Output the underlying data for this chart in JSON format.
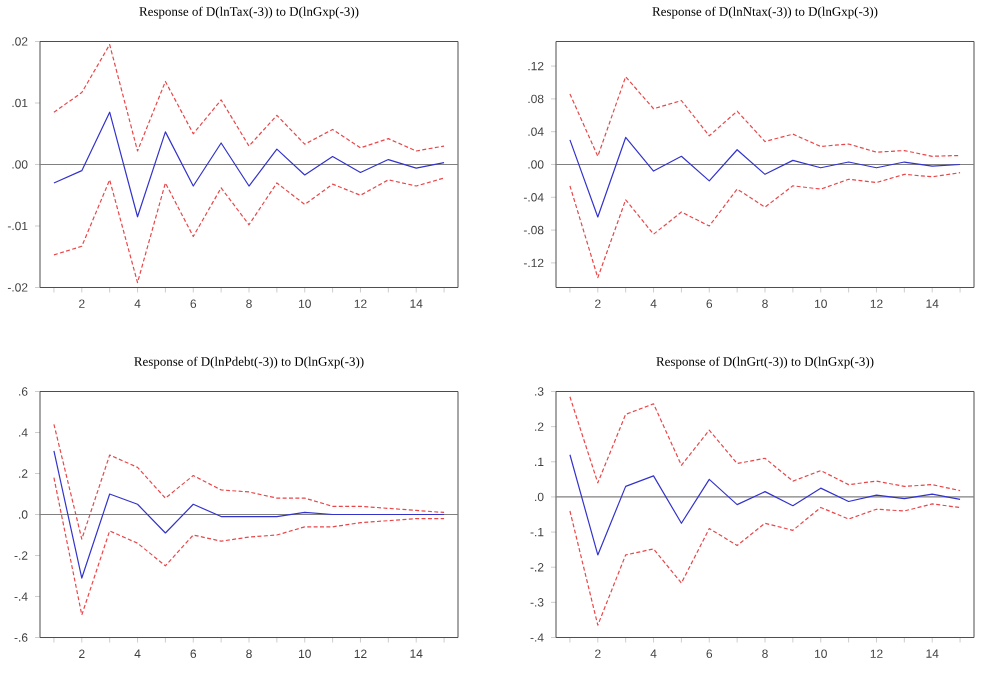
{
  "chart_data": [
    {
      "type": "line",
      "title": "Response of D(lnTax(-3)) to D(lnGxp(-3))",
      "x": [
        1,
        2,
        3,
        4,
        5,
        6,
        7,
        8,
        9,
        10,
        11,
        12,
        13,
        14,
        15
      ],
      "xlim": [
        0.5,
        15.5
      ],
      "xticks": [
        {
          "value": 1,
          "label": null
        },
        2,
        {
          "value": 3,
          "label": null
        },
        4,
        {
          "value": 5,
          "label": null
        },
        6,
        {
          "value": 7,
          "label": null
        },
        8,
        {
          "value": 9,
          "label": null
        },
        10,
        {
          "value": 11,
          "label": null
        },
        12,
        {
          "value": 13,
          "label": null
        },
        14,
        {
          "value": 15,
          "label": null
        }
      ],
      "ylim": [
        -0.02,
        0.02
      ],
      "yticks": [
        {
          "value": -0.02,
          "label": "-.02"
        },
        {
          "value": -0.01,
          "label": "-.01"
        },
        {
          "value": 0,
          "label": ".00"
        },
        {
          "value": 0.01,
          "label": ".01"
        },
        {
          "value": 0.02,
          "label": ".02"
        }
      ],
      "ref_lines": [
        {
          "axis": "y",
          "value": 0,
          "color": "#808080"
        }
      ],
      "series": [
        {
          "color": "#3333cc",
          "line_style": "solid",
          "values": [
            -0.003,
            -0.001,
            0.0085,
            -0.0085,
            0.0053,
            -0.0035,
            0.0035,
            -0.0035,
            0.0025,
            -0.0017,
            0.0013,
            -0.0013,
            0.0008,
            -0.0006,
            0.0003
          ]
        },
        {
          "color": "#e8474a",
          "line_style": "dashed",
          "values": [
            0.0085,
            0.0117,
            0.0195,
            0.0022,
            0.0135,
            0.005,
            0.0105,
            0.003,
            0.008,
            0.0033,
            0.0057,
            0.0027,
            0.0042,
            0.0022,
            0.003
          ]
        },
        {
          "color": "#e8474a",
          "line_style": "dashed",
          "values": [
            -0.0147,
            -0.0133,
            -0.0025,
            -0.0192,
            -0.003,
            -0.0117,
            -0.0038,
            -0.0098,
            -0.003,
            -0.0065,
            -0.0032,
            -0.005,
            -0.0025,
            -0.0035,
            -0.0022
          ]
        }
      ]
    },
    {
      "type": "line",
      "title": "Response of D(lnNtax(-3)) to D(lnGxp(-3))",
      "x": [
        1,
        2,
        3,
        4,
        5,
        6,
        7,
        8,
        9,
        10,
        11,
        12,
        13,
        14,
        15
      ],
      "xlim": [
        0.5,
        15.5
      ],
      "xticks": [
        {
          "value": 1,
          "label": null
        },
        2,
        {
          "value": 3,
          "label": null
        },
        4,
        {
          "value": 5,
          "label": null
        },
        6,
        {
          "value": 7,
          "label": null
        },
        8,
        {
          "value": 9,
          "label": null
        },
        10,
        {
          "value": 11,
          "label": null
        },
        12,
        {
          "value": 13,
          "label": null
        },
        14,
        {
          "value": 15,
          "label": null
        }
      ],
      "ylim": [
        -0.15,
        0.15
      ],
      "yticks": [
        {
          "value": -0.12,
          "label": "-.12"
        },
        {
          "value": -0.08,
          "label": "-.08"
        },
        {
          "value": -0.04,
          "label": "-.04"
        },
        {
          "value": 0,
          "label": ".00"
        },
        {
          "value": 0.04,
          "label": ".04"
        },
        {
          "value": 0.08,
          "label": ".08"
        },
        {
          "value": 0.12,
          "label": ".12"
        }
      ],
      "ref_lines": [
        {
          "axis": "y",
          "value": 0,
          "color": "#808080"
        }
      ],
      "series": [
        {
          "color": "#3333cc",
          "line_style": "solid",
          "values": [
            0.03,
            -0.064,
            0.033,
            -0.008,
            0.01,
            -0.02,
            0.018,
            -0.012,
            0.005,
            -0.004,
            0.003,
            -0.004,
            0.003,
            -0.002,
            0.0
          ]
        },
        {
          "color": "#e8474a",
          "line_style": "dashed",
          "values": [
            0.086,
            0.01,
            0.107,
            0.068,
            0.078,
            0.035,
            0.065,
            0.028,
            0.037,
            0.022,
            0.025,
            0.015,
            0.017,
            0.01,
            0.011
          ]
        },
        {
          "color": "#e8474a",
          "line_style": "dashed",
          "values": [
            -0.026,
            -0.138,
            -0.043,
            -0.085,
            -0.058,
            -0.075,
            -0.03,
            -0.052,
            -0.026,
            -0.03,
            -0.018,
            -0.022,
            -0.012,
            -0.015,
            -0.01
          ]
        }
      ]
    },
    {
      "type": "line",
      "title": "Response of D(lnPdebt(-3)) to D(lnGxp(-3))",
      "x": [
        1,
        2,
        3,
        4,
        5,
        6,
        7,
        8,
        9,
        10,
        11,
        12,
        13,
        14,
        15
      ],
      "xlim": [
        0.5,
        15.5
      ],
      "xticks": [
        {
          "value": 1,
          "label": null
        },
        2,
        {
          "value": 3,
          "label": null
        },
        4,
        {
          "value": 5,
          "label": null
        },
        6,
        {
          "value": 7,
          "label": null
        },
        8,
        {
          "value": 9,
          "label": null
        },
        10,
        {
          "value": 11,
          "label": null
        },
        12,
        {
          "value": 13,
          "label": null
        },
        14,
        {
          "value": 15,
          "label": null
        }
      ],
      "ylim": [
        -0.6,
        0.6
      ],
      "yticks": [
        {
          "value": -0.6,
          "label": "-.6"
        },
        {
          "value": -0.4,
          "label": "-.4"
        },
        {
          "value": -0.2,
          "label": "-.2"
        },
        {
          "value": 0,
          "label": ".0"
        },
        {
          "value": 0.2,
          "label": ".2"
        },
        {
          "value": 0.4,
          "label": ".4"
        },
        {
          "value": 0.6,
          "label": ".6"
        }
      ],
      "ref_lines": [
        {
          "axis": "y",
          "value": 0,
          "color": "#808080"
        }
      ],
      "series": [
        {
          "color": "#3333cc",
          "line_style": "solid",
          "values": [
            0.31,
            -0.31,
            0.1,
            0.05,
            -0.09,
            0.05,
            -0.01,
            -0.01,
            -0.01,
            0.01,
            0.0,
            0.0,
            0.0,
            0.0,
            0.0
          ]
        },
        {
          "color": "#e8474a",
          "line_style": "dashed",
          "values": [
            0.44,
            -0.12,
            0.29,
            0.23,
            0.08,
            0.19,
            0.12,
            0.11,
            0.08,
            0.08,
            0.04,
            0.04,
            0.03,
            0.02,
            0.01
          ]
        },
        {
          "color": "#e8474a",
          "line_style": "dashed",
          "values": [
            0.18,
            -0.49,
            -0.08,
            -0.14,
            -0.25,
            -0.1,
            -0.13,
            -0.11,
            -0.1,
            -0.06,
            -0.06,
            -0.04,
            -0.03,
            -0.02,
            -0.02
          ]
        }
      ]
    },
    {
      "type": "line",
      "title": "Response of D(lnGrt(-3)) to D(lnGxp(-3))",
      "x": [
        1,
        2,
        3,
        4,
        5,
        6,
        7,
        8,
        9,
        10,
        11,
        12,
        13,
        14,
        15
      ],
      "xlim": [
        0.5,
        15.5
      ],
      "xticks": [
        {
          "value": 1,
          "label": null
        },
        2,
        {
          "value": 3,
          "label": null
        },
        4,
        {
          "value": 5,
          "label": null
        },
        6,
        {
          "value": 7,
          "label": null
        },
        8,
        {
          "value": 9,
          "label": null
        },
        10,
        {
          "value": 11,
          "label": null
        },
        12,
        {
          "value": 13,
          "label": null
        },
        14,
        {
          "value": 15,
          "label": null
        }
      ],
      "ylim": [
        -0.4,
        0.3
      ],
      "yticks": [
        {
          "value": -0.4,
          "label": "-.4"
        },
        {
          "value": -0.3,
          "label": "-.3"
        },
        {
          "value": -0.2,
          "label": "-.2"
        },
        {
          "value": -0.1,
          "label": "-.1"
        },
        {
          "value": 0,
          "label": ".0"
        },
        {
          "value": 0.1,
          "label": ".1"
        },
        {
          "value": 0.2,
          "label": ".2"
        },
        {
          "value": 0.3,
          "label": ".3"
        }
      ],
      "ref_lines": [
        {
          "axis": "y",
          "value": 0,
          "color": "#808080"
        }
      ],
      "series": [
        {
          "color": "#3333cc",
          "line_style": "solid",
          "values": [
            0.12,
            -0.165,
            0.03,
            0.06,
            -0.075,
            0.05,
            -0.022,
            0.015,
            -0.025,
            0.025,
            -0.013,
            0.005,
            -0.005,
            0.008,
            -0.007
          ]
        },
        {
          "color": "#e8474a",
          "line_style": "dashed",
          "values": [
            0.285,
            0.04,
            0.235,
            0.265,
            0.09,
            0.19,
            0.095,
            0.11,
            0.045,
            0.075,
            0.035,
            0.045,
            0.03,
            0.035,
            0.018
          ]
        },
        {
          "color": "#e8474a",
          "line_style": "dashed",
          "values": [
            -0.04,
            -0.365,
            -0.165,
            -0.148,
            -0.245,
            -0.09,
            -0.138,
            -0.075,
            -0.095,
            -0.03,
            -0.063,
            -0.035,
            -0.04,
            -0.02,
            -0.03
          ]
        }
      ]
    }
  ]
}
